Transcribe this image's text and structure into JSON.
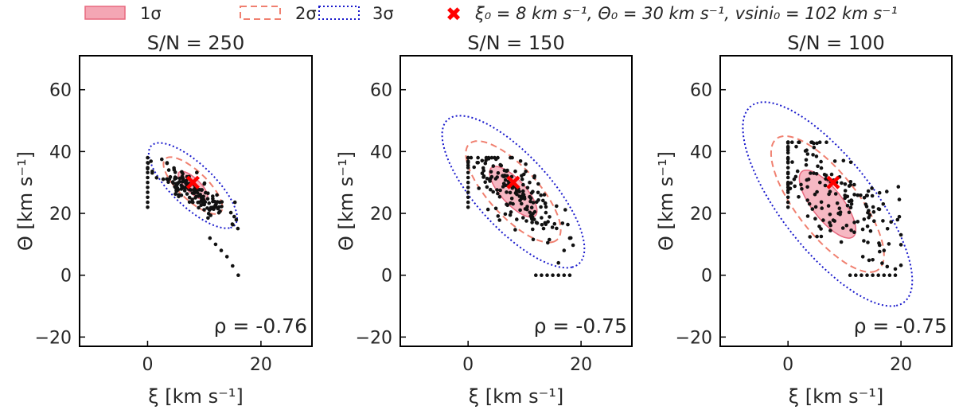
{
  "legend": {
    "sigma1": "1σ",
    "sigma2": "2σ",
    "sigma3": "3σ",
    "truth": "ξ₀ = 8 km s⁻¹, Θ₀ = 30 km s⁻¹, vsini₀ = 102 km s⁻¹"
  },
  "colors": {
    "sigma1_fill": "#f4a6b4",
    "sigma1_edge": "#e8697f",
    "sigma2": "#f08070",
    "sigma3": "#1a1acc",
    "points": "#111111",
    "truth": "#ff0000"
  },
  "chart_data": [
    {
      "type": "scatter",
      "title": "S/N = 250",
      "xlabel": "ξ [km s⁻¹]",
      "ylabel": "Θ [km s⁻¹]",
      "xlim": [
        -12,
        29
      ],
      "ylim": [
        -23,
        71
      ],
      "xticks": [
        "0",
        "20"
      ],
      "yticks": [
        "−20",
        "0",
        "20",
        "40",
        "60"
      ],
      "rho_label": "ρ = -0.76",
      "truth": {
        "x": 8,
        "y": 30
      },
      "ellipse_1sigma": {
        "cx": 8,
        "cy": 29,
        "sx": 2.6,
        "sy": 4.6
      },
      "ellipse_2sigma": {
        "cx": 8,
        "cy": 29,
        "sx": 5.2,
        "sy": 9.2
      },
      "ellipse_3sigma": {
        "cx": 8,
        "cy": 29,
        "sx": 7.8,
        "sy": 13.8
      },
      "rho": -0.76,
      "points_cloud": {
        "n": 150,
        "sx": 3.2,
        "sy": 4.5,
        "rho": -0.82,
        "seed": 11,
        "clipx": [
          0,
          16
        ],
        "clipy": [
          0,
          38
        ]
      },
      "extra_points": [
        [
          12,
          10
        ],
        [
          13,
          8
        ],
        [
          14,
          6
        ],
        [
          15,
          3
        ],
        [
          16,
          0
        ],
        [
          11,
          12
        ]
      ]
    },
    {
      "type": "scatter",
      "title": "S/N = 150",
      "xlabel": "ξ [km s⁻¹]",
      "ylabel": "Θ [km s⁻¹]",
      "xlim": [
        -12,
        29
      ],
      "ylim": [
        -23,
        71
      ],
      "xticks": [
        "0",
        "20"
      ],
      "yticks": [
        "−20",
        "0",
        "20",
        "40",
        "60"
      ],
      "rho_label": "ρ = -0.75",
      "truth": {
        "x": 8,
        "y": 30
      },
      "ellipse_1sigma": {
        "cx": 8,
        "cy": 27,
        "sx": 4.2,
        "sy": 8.2
      },
      "ellipse_2sigma": {
        "cx": 8,
        "cy": 27,
        "sx": 8.4,
        "sy": 16.4
      },
      "ellipse_3sigma": {
        "cx": 8,
        "cy": 27,
        "sx": 12.6,
        "sy": 24.6
      },
      "rho": -0.75,
      "points_cloud": {
        "n": 170,
        "sx": 4.2,
        "sy": 7.5,
        "rho": -0.78,
        "seed": 23,
        "clipx": [
          0,
          19
        ],
        "clipy": [
          0,
          38
        ]
      },
      "extra_points": [
        [
          12,
          0
        ],
        [
          13,
          0
        ],
        [
          14,
          0
        ],
        [
          15,
          0
        ],
        [
          16,
          0
        ],
        [
          17,
          0
        ],
        [
          18,
          0
        ],
        [
          16,
          4
        ],
        [
          17,
          8
        ],
        [
          18,
          12
        ]
      ]
    },
    {
      "type": "scatter",
      "title": "S/N = 100",
      "xlabel": "ξ [km s⁻¹]",
      "ylabel": "Θ [km s⁻¹]",
      "xlim": [
        -12,
        29
      ],
      "ylim": [
        -23,
        71
      ],
      "xticks": [
        "0",
        "20"
      ],
      "yticks": [
        "−20",
        "0",
        "20",
        "40",
        "60"
      ],
      "rho_label": "ρ = -0.75",
      "truth": {
        "x": 8,
        "y": 30
      },
      "ellipse_1sigma": {
        "cx": 7,
        "cy": 23,
        "sx": 5.0,
        "sy": 11.0
      },
      "ellipse_2sigma": {
        "cx": 7,
        "cy": 23,
        "sx": 10.0,
        "sy": 22.0
      },
      "ellipse_3sigma": {
        "cx": 7,
        "cy": 23,
        "sx": 15.0,
        "sy": 33.0
      },
      "rho": -0.75,
      "points_cloud": {
        "n": 170,
        "sx": 5.5,
        "sy": 10.0,
        "rho": -0.6,
        "seed": 37,
        "clipx": [
          0,
          20
        ],
        "clipy": [
          0,
          43
        ]
      },
      "extra_points": [
        [
          11,
          0
        ],
        [
          12,
          0
        ],
        [
          13,
          0
        ],
        [
          14,
          0
        ],
        [
          15,
          0
        ],
        [
          16,
          0
        ],
        [
          17,
          0
        ],
        [
          18,
          0
        ],
        [
          19,
          0
        ],
        [
          15,
          5
        ],
        [
          17,
          8
        ],
        [
          19,
          2
        ]
      ]
    }
  ]
}
